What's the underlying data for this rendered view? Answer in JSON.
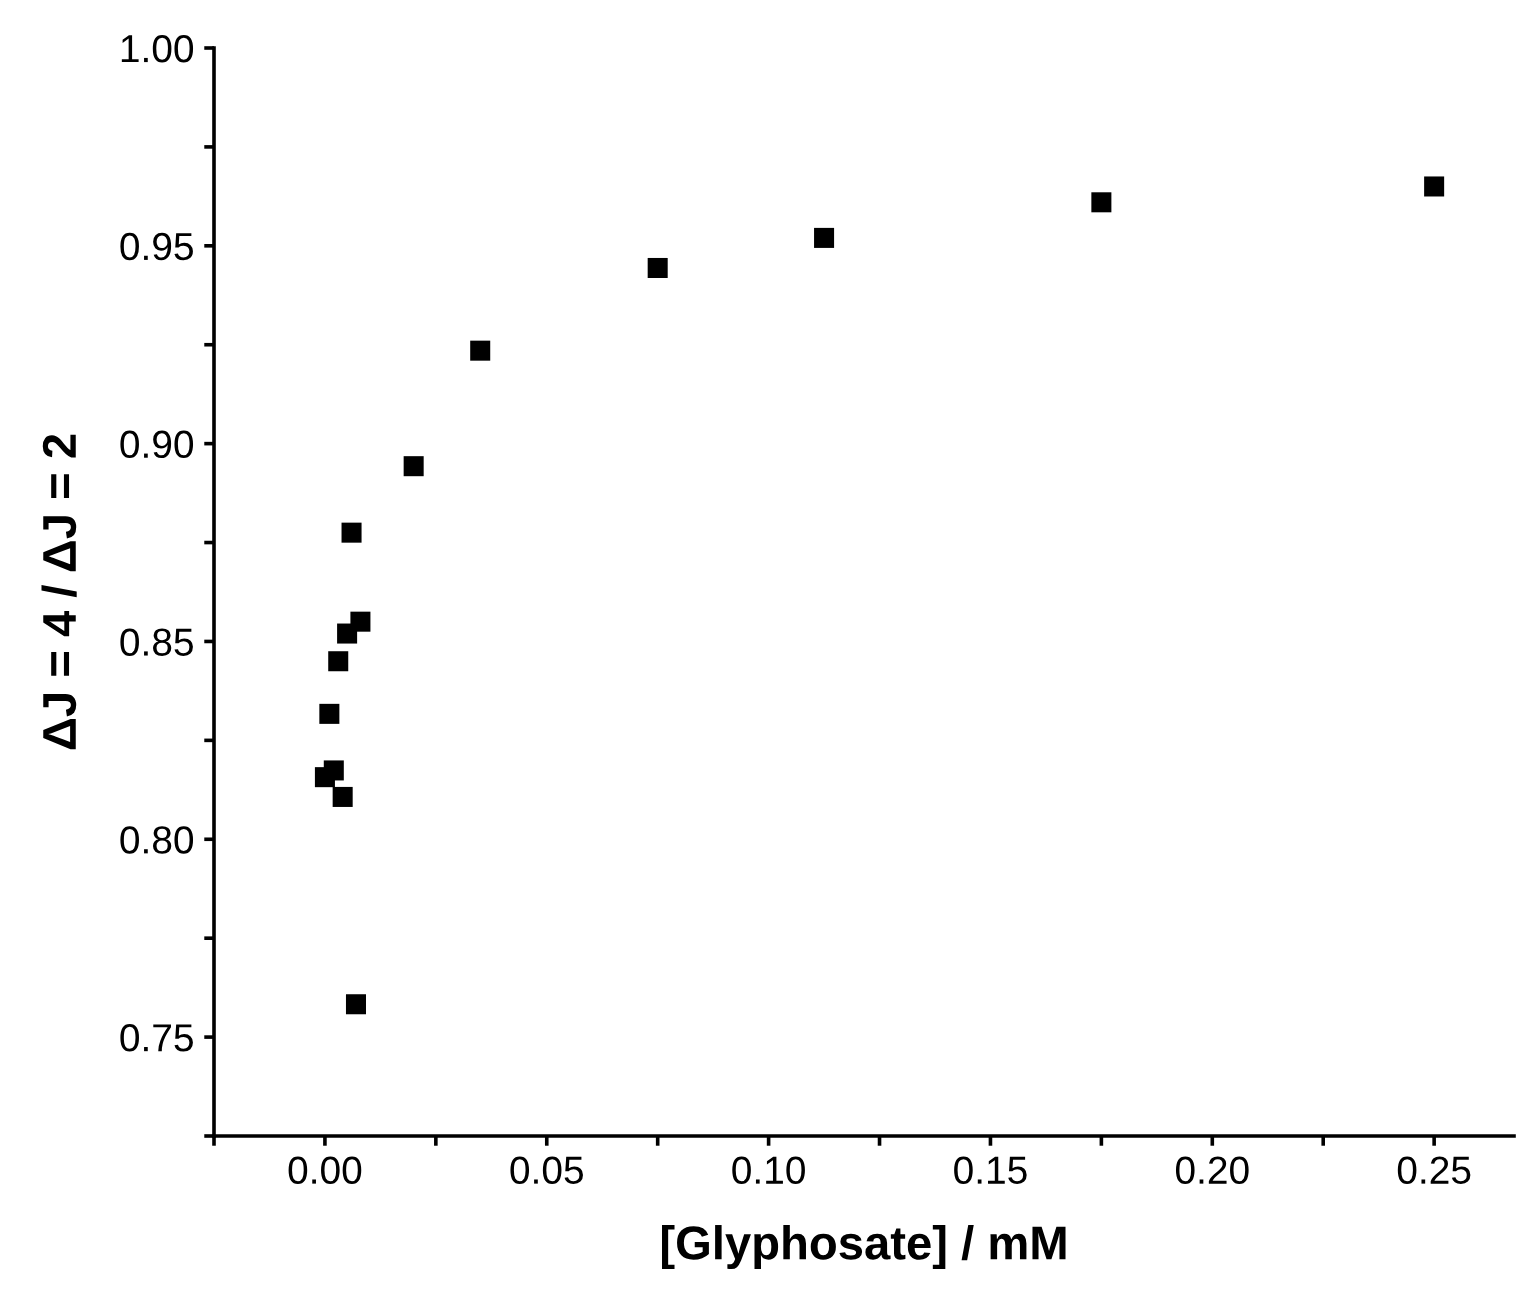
{
  "chart_data": {
    "type": "scatter",
    "xlabel": "[Glyphosate] / mM",
    "ylabel": "ΔJ = 4 / ΔJ = 2",
    "x": [
      0.0,
      0.001,
      0.002,
      0.003,
      0.004,
      0.005,
      0.006,
      0.007,
      0.008,
      0.02,
      0.035,
      0.075,
      0.1125,
      0.175,
      0.25
    ],
    "series": [
      {
        "color": "#000000",
        "values": [
          0.8157,
          0.8317,
          0.8174,
          0.845,
          0.8107,
          0.852,
          0.8775,
          0.7583,
          0.855,
          0.8943,
          0.9235,
          0.9444,
          0.952,
          0.961,
          0.965
        ]
      }
    ],
    "marker": "square",
    "xlim": [
      -0.025,
      0.268
    ],
    "ylim": [
      0.725,
      1.0
    ],
    "xticks": [
      {
        "value": -0.025,
        "label": null
      },
      {
        "value": 0.0,
        "label": "0.00"
      },
      {
        "value": 0.025,
        "label": null
      },
      {
        "value": 0.05,
        "label": "0.05"
      },
      {
        "value": 0.075,
        "label": null
      },
      {
        "value": 0.1,
        "label": "0.10"
      },
      {
        "value": 0.125,
        "label": null
      },
      {
        "value": 0.15,
        "label": "0.15"
      },
      {
        "value": 0.175,
        "label": null
      },
      {
        "value": 0.2,
        "label": "0.20"
      },
      {
        "value": 0.225,
        "label": null
      },
      {
        "value": 0.25,
        "label": "0.25"
      }
    ],
    "yticks": [
      {
        "value": 0.725,
        "label": null
      },
      {
        "value": 0.75,
        "label": "0.75"
      },
      {
        "value": 0.775,
        "label": null
      },
      {
        "value": 0.8,
        "label": "0.80"
      },
      {
        "value": 0.825,
        "label": null
      },
      {
        "value": 0.85,
        "label": "0.85"
      },
      {
        "value": 0.875,
        "label": null
      },
      {
        "value": 0.9,
        "label": "0.90"
      },
      {
        "value": 0.925,
        "label": null
      },
      {
        "value": 0.95,
        "label": "0.95"
      },
      {
        "value": 0.975,
        "label": null
      },
      {
        "value": 1.0,
        "label": "1.00"
      }
    ],
    "grid": false,
    "legend": false
  }
}
